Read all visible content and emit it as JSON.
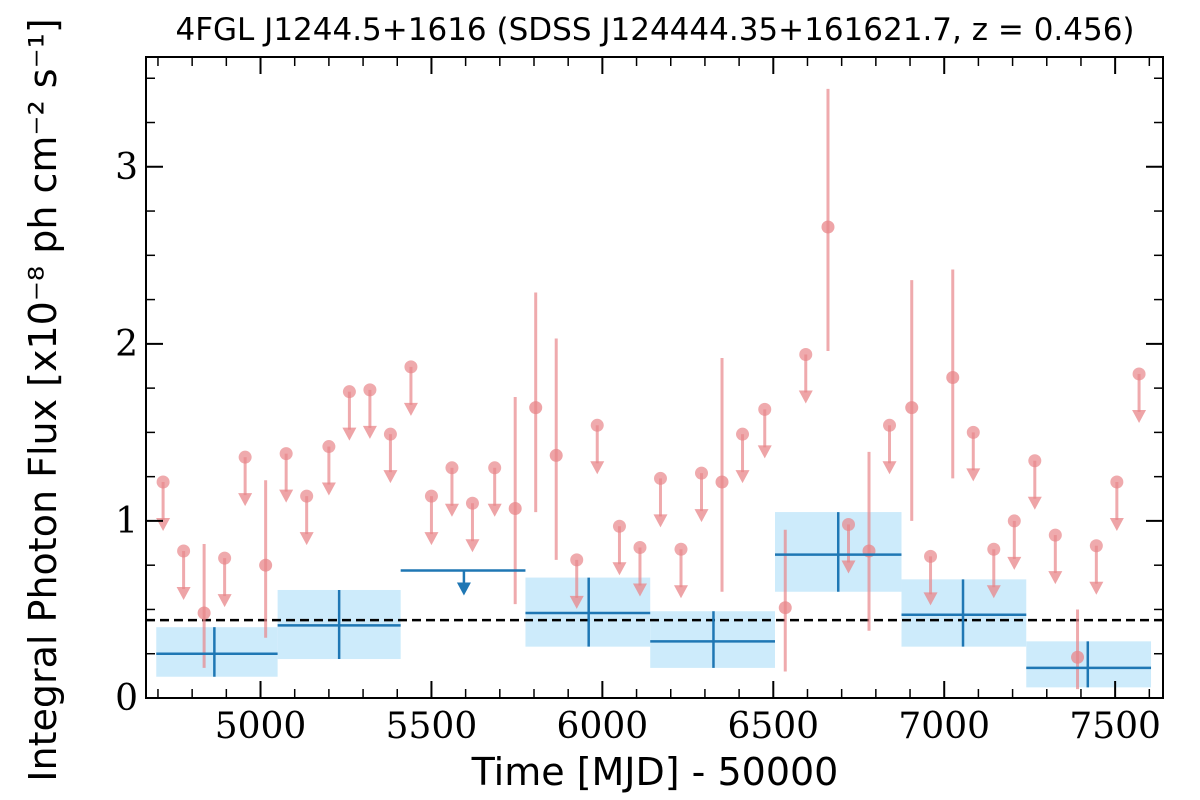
{
  "chart_data": {
    "type": "scatter",
    "title": "4FGL J1244.5+1616 (SDSS J124444.35+161621.7, z = 0.456)",
    "xlabel": "Time [MJD] - 50000",
    "ylabel": "Integral Photon Flux [x10⁻⁸ ph cm⁻² s⁻¹]",
    "xlim": [
      4665,
      7640
    ],
    "ylim": [
      0,
      3.62
    ],
    "x_ticks": [
      "5000",
      "5500",
      "6000",
      "6500",
      "7000",
      "7500"
    ],
    "y_ticks": [
      "0",
      "1",
      "2",
      "3"
    ],
    "x_tick_values": [
      5000,
      5500,
      6000,
      6500,
      7000,
      7500
    ],
    "y_tick_values": [
      0,
      1,
      2,
      3
    ],
    "reference_line": {
      "y": 0.44,
      "style": "dashed",
      "color": "#000000"
    },
    "colors": {
      "short_bins": "#e8868a",
      "long_bins": "#1f77b4",
      "long_bin_error_band": "#cdebfb"
    },
    "short_bin_detections": [
      {
        "x": 4835,
        "y": 0.48,
        "ylo": 0.17,
        "yhi": 0.87
      },
      {
        "x": 5015,
        "y": 0.75,
        "ylo": 0.34,
        "yhi": 1.23
      },
      {
        "x": 5745,
        "y": 1.07,
        "ylo": 0.53,
        "yhi": 1.7
      },
      {
        "x": 5805,
        "y": 1.64,
        "ylo": 1.05,
        "yhi": 2.29
      },
      {
        "x": 5865,
        "y": 1.37,
        "ylo": 0.78,
        "yhi": 2.03
      },
      {
        "x": 6350,
        "y": 1.22,
        "ylo": 0.6,
        "yhi": 1.92
      },
      {
        "x": 6535,
        "y": 0.51,
        "ylo": 0.15,
        "yhi": 0.95
      },
      {
        "x": 6660,
        "y": 2.66,
        "ylo": 1.96,
        "yhi": 3.44
      },
      {
        "x": 6780,
        "y": 0.83,
        "ylo": 0.38,
        "yhi": 1.39
      },
      {
        "x": 6905,
        "y": 1.64,
        "ylo": 1.0,
        "yhi": 2.36
      },
      {
        "x": 7025,
        "y": 1.81,
        "ylo": 1.24,
        "yhi": 2.42
      },
      {
        "x": 7390,
        "y": 0.23,
        "ylo": 0.05,
        "yhi": 0.5
      }
    ],
    "short_bin_upper_limits": [
      {
        "x": 4715,
        "y": 1.22
      },
      {
        "x": 4775,
        "y": 0.83
      },
      {
        "x": 4895,
        "y": 0.79
      },
      {
        "x": 4955,
        "y": 1.36
      },
      {
        "x": 5075,
        "y": 1.38
      },
      {
        "x": 5135,
        "y": 1.14
      },
      {
        "x": 5200,
        "y": 1.42
      },
      {
        "x": 5260,
        "y": 1.73
      },
      {
        "x": 5320,
        "y": 1.74
      },
      {
        "x": 5380,
        "y": 1.49
      },
      {
        "x": 5440,
        "y": 1.87
      },
      {
        "x": 5500,
        "y": 1.14
      },
      {
        "x": 5560,
        "y": 1.3
      },
      {
        "x": 5620,
        "y": 1.1
      },
      {
        "x": 5685,
        "y": 1.3
      },
      {
        "x": 5925,
        "y": 0.78
      },
      {
        "x": 5985,
        "y": 1.54
      },
      {
        "x": 6050,
        "y": 0.97
      },
      {
        "x": 6110,
        "y": 0.85
      },
      {
        "x": 6170,
        "y": 1.24
      },
      {
        "x": 6230,
        "y": 0.84
      },
      {
        "x": 6290,
        "y": 1.27
      },
      {
        "x": 6410,
        "y": 1.49
      },
      {
        "x": 6475,
        "y": 1.63
      },
      {
        "x": 6595,
        "y": 1.94
      },
      {
        "x": 6720,
        "y": 0.98
      },
      {
        "x": 6840,
        "y": 1.54
      },
      {
        "x": 6960,
        "y": 0.8
      },
      {
        "x": 7085,
        "y": 1.5
      },
      {
        "x": 7145,
        "y": 0.84
      },
      {
        "x": 7205,
        "y": 1.0
      },
      {
        "x": 7265,
        "y": 1.34
      },
      {
        "x": 7325,
        "y": 0.92
      },
      {
        "x": 7445,
        "y": 0.86
      },
      {
        "x": 7505,
        "y": 1.22
      },
      {
        "x": 7570,
        "y": 1.83
      }
    ],
    "long_bin_detections": [
      {
        "x": 4865,
        "x0": 4695,
        "x1": 5050,
        "y": 0.25,
        "ylo": 0.12,
        "yhi": 0.4
      },
      {
        "x": 5230,
        "x0": 5050,
        "x1": 5410,
        "y": 0.41,
        "ylo": 0.22,
        "yhi": 0.61
      },
      {
        "x": 5960,
        "x0": 5775,
        "x1": 6140,
        "y": 0.48,
        "ylo": 0.29,
        "yhi": 0.68
      },
      {
        "x": 6325,
        "x0": 6140,
        "x1": 6505,
        "y": 0.32,
        "ylo": 0.17,
        "yhi": 0.49
      },
      {
        "x": 6690,
        "x0": 6505,
        "x1": 6875,
        "y": 0.81,
        "ylo": 0.6,
        "yhi": 1.05
      },
      {
        "x": 7055,
        "x0": 6875,
        "x1": 7240,
        "y": 0.47,
        "ylo": 0.29,
        "yhi": 0.67
      },
      {
        "x": 7420,
        "x0": 7240,
        "x1": 7605,
        "y": 0.17,
        "ylo": 0.06,
        "yhi": 0.32
      }
    ],
    "long_bin_upper_limits": [
      {
        "x": 5595,
        "x0": 5410,
        "x1": 5775,
        "y": 0.72
      }
    ]
  }
}
